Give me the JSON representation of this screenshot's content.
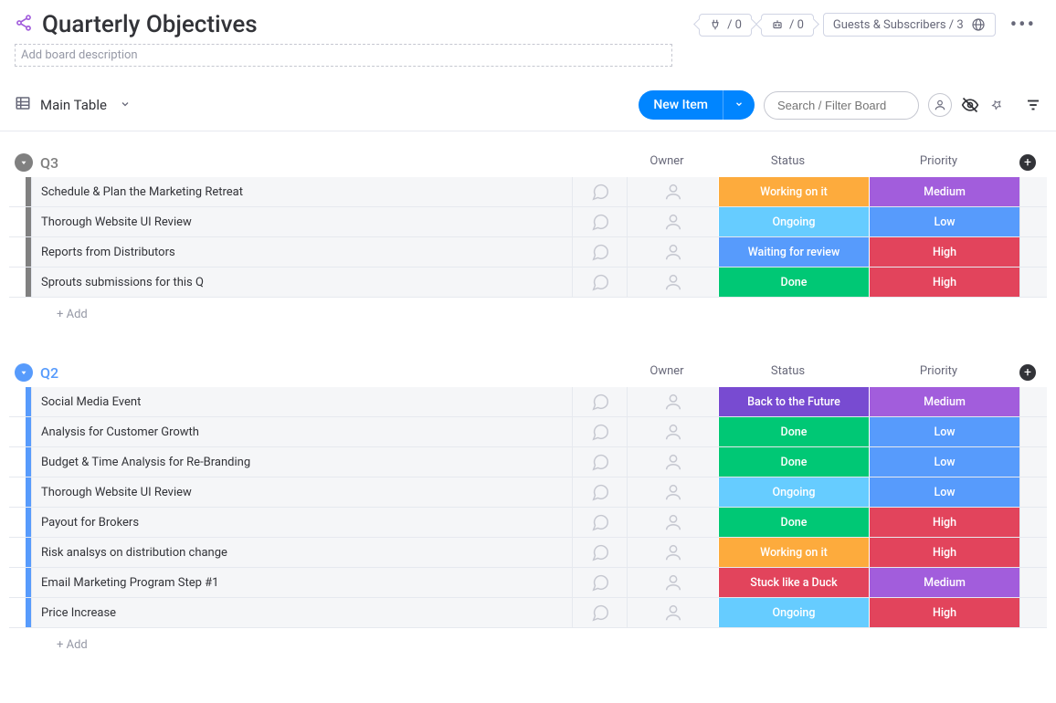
{
  "header": {
    "title": "Quarterly Objectives",
    "description_placeholder": "Add board description",
    "pill1_count": "/ 0",
    "pill2_count": "/ 0",
    "guests_label": "Guests & Subscribers / 3"
  },
  "toolbar": {
    "view_name": "Main Table",
    "new_item_label": "New Item",
    "search_placeholder": "Search / Filter Board"
  },
  "columns": {
    "owner": "Owner",
    "status": "Status",
    "priority": "Priority"
  },
  "add_label": "+ Add",
  "colors": {
    "accent_blue": "#0085ff",
    "group_q3": "#808080",
    "group_q2": "#579bfc",
    "status": {
      "Working on it": "#fdab3d",
      "Ongoing": "#66ccff",
      "Waiting for review": "#579bfc",
      "Done": "#00c875",
      "Back to the Future": "#784bd1",
      "Stuck like a Duck": "#e2445c"
    },
    "priority": {
      "Medium": "#a25ddc",
      "Low": "#579bfc",
      "High": "#e2445c"
    }
  },
  "groups": [
    {
      "id": "q3",
      "title": "Q3",
      "color_key": "group_q3",
      "rows": [
        {
          "name": "Schedule & Plan the Marketing Retreat",
          "status": "Working on it",
          "priority": "Medium"
        },
        {
          "name": "Thorough Website UI Review",
          "status": "Ongoing",
          "priority": "Low"
        },
        {
          "name": "Reports from Distributors",
          "status": "Waiting for review",
          "priority": "High"
        },
        {
          "name": "Sprouts submissions for this Q",
          "status": "Done",
          "priority": "High"
        }
      ]
    },
    {
      "id": "q2",
      "title": "Q2",
      "color_key": "group_q2",
      "rows": [
        {
          "name": "Social Media Event",
          "status": "Back to the Future",
          "priority": "Medium"
        },
        {
          "name": "Analysis for Customer Growth",
          "status": "Done",
          "priority": "Low"
        },
        {
          "name": "Budget & Time Analysis for Re-Branding",
          "status": "Done",
          "priority": "Low"
        },
        {
          "name": "Thorough Website UI Review",
          "status": "Ongoing",
          "priority": "Low"
        },
        {
          "name": "Payout for Brokers",
          "status": "Done",
          "priority": "High"
        },
        {
          "name": "Risk analsys on distribution change",
          "status": "Working on it",
          "priority": "High"
        },
        {
          "name": "Email Marketing Program Step #1",
          "status": "Stuck like a Duck",
          "priority": "Medium"
        },
        {
          "name": "Price Increase",
          "status": "Ongoing",
          "priority": "High"
        }
      ]
    }
  ]
}
